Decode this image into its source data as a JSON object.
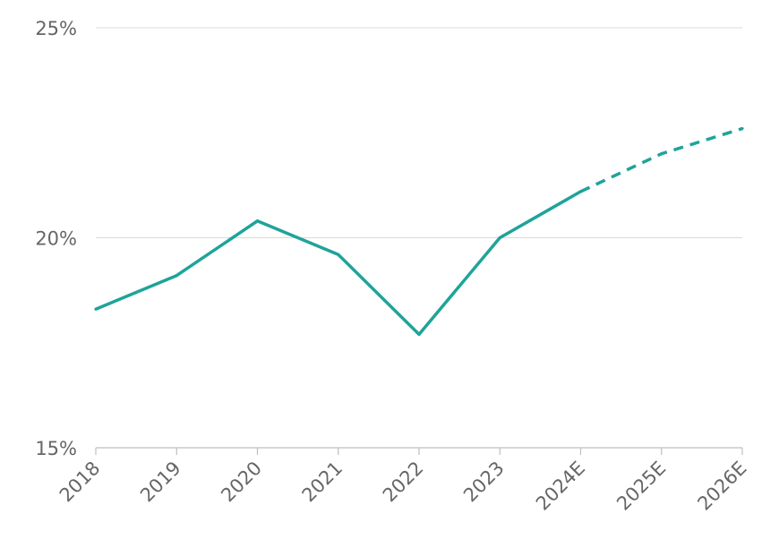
{
  "chart_data": {
    "type": "line",
    "categories": [
      "2018",
      "2019",
      "2020",
      "2021",
      "2022",
      "2023",
      "2024E",
      "2025E",
      "2026E"
    ],
    "series": [
      {
        "values": [
          18.3,
          19.1,
          20.4,
          19.6,
          17.7,
          20.0,
          21.1,
          22.0,
          22.6
        ],
        "color": "#1fa39a",
        "dashed_from": "2024E"
      }
    ],
    "y_ticks": [
      "15%",
      "20%",
      "25%"
    ],
    "ylim": [
      15,
      25
    ],
    "grid": true,
    "legend": "none"
  }
}
